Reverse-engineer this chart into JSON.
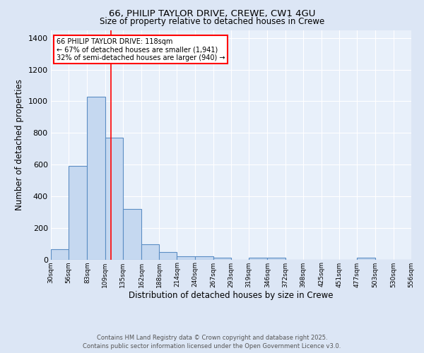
{
  "title1": "66, PHILIP TAYLOR DRIVE, CREWE, CW1 4GU",
  "title2": "Size of property relative to detached houses in Crewe",
  "xlabel": "Distribution of detached houses by size in Crewe",
  "ylabel": "Number of detached properties",
  "bin_edges": [
    30,
    56,
    83,
    109,
    135,
    162,
    188,
    214,
    240,
    267,
    293,
    319,
    346,
    372,
    398,
    425,
    451,
    477,
    503,
    530,
    556
  ],
  "bar_heights": [
    65,
    590,
    1030,
    770,
    320,
    95,
    45,
    22,
    18,
    10,
    0,
    10,
    10,
    0,
    0,
    0,
    0,
    10,
    0,
    0
  ],
  "bar_color": "#c5d8f0",
  "bar_edgecolor": "#5b8ec4",
  "red_line_x": 118,
  "annotation_title": "66 PHILIP TAYLOR DRIVE: 118sqm",
  "annotation_line1": "← 67% of detached houses are smaller (1,941)",
  "annotation_line2": "32% of semi-detached houses are larger (940) →",
  "annotation_box_facecolor": "white",
  "annotation_box_edgecolor": "red",
  "ylim": [
    0,
    1450
  ],
  "yticks": [
    0,
    200,
    400,
    600,
    800,
    1000,
    1200,
    1400
  ],
  "footer1": "Contains HM Land Registry data © Crown copyright and database right 2025.",
  "footer2": "Contains public sector information licensed under the Open Government Licence v3.0.",
  "bg_color": "#dce6f5",
  "plot_bg_color": "#e8f0fa",
  "grid_color": "#ffffff"
}
